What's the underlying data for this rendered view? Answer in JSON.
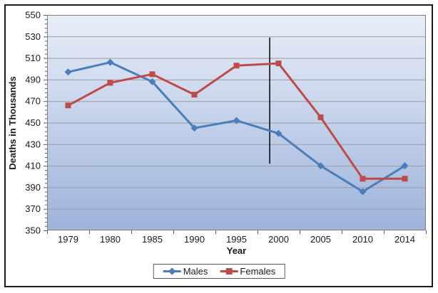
{
  "chart_data": {
    "type": "line",
    "title": "",
    "xlabel": "Year",
    "ylabel": "Deaths in Thousands",
    "categories": [
      "1979",
      "1980",
      "1985",
      "1990",
      "1995",
      "2000",
      "2005",
      "2010",
      "2014"
    ],
    "series": [
      {
        "name": "Males",
        "color": "#4A7EBB",
        "marker": "diamond",
        "values": [
          497,
          506,
          488,
          445,
          452,
          440,
          410,
          386,
          410
        ]
      },
      {
        "name": "Females",
        "color": "#BE4B48",
        "marker": "square",
        "values": [
          466,
          487,
          495,
          476,
          503,
          505,
          455,
          398,
          398
        ]
      }
    ],
    "ylim": [
      350,
      550
    ],
    "yticks": [
      350,
      370,
      390,
      410,
      430,
      450,
      470,
      490,
      510,
      530,
      550
    ],
    "ytick_step": 20,
    "y_minor_step": 4,
    "grid": "horizontal-major",
    "gridline_color": "#9B9B9B",
    "plot_border_color": "#7F7F7F",
    "plot_bg_gradient_top": "#E8EEF8",
    "plot_bg_gradient_bottom": "#9DB3DC",
    "tick_label_color": "#1a1a1a",
    "legend_position": "bottom-center",
    "annotations": [
      {
        "type": "vline",
        "x_index": 5.29,
        "y_from": 412,
        "y_to": 529,
        "color": "#000000"
      }
    ]
  },
  "legend": {
    "items": [
      {
        "label": "Males"
      },
      {
        "label": "Females"
      }
    ]
  }
}
